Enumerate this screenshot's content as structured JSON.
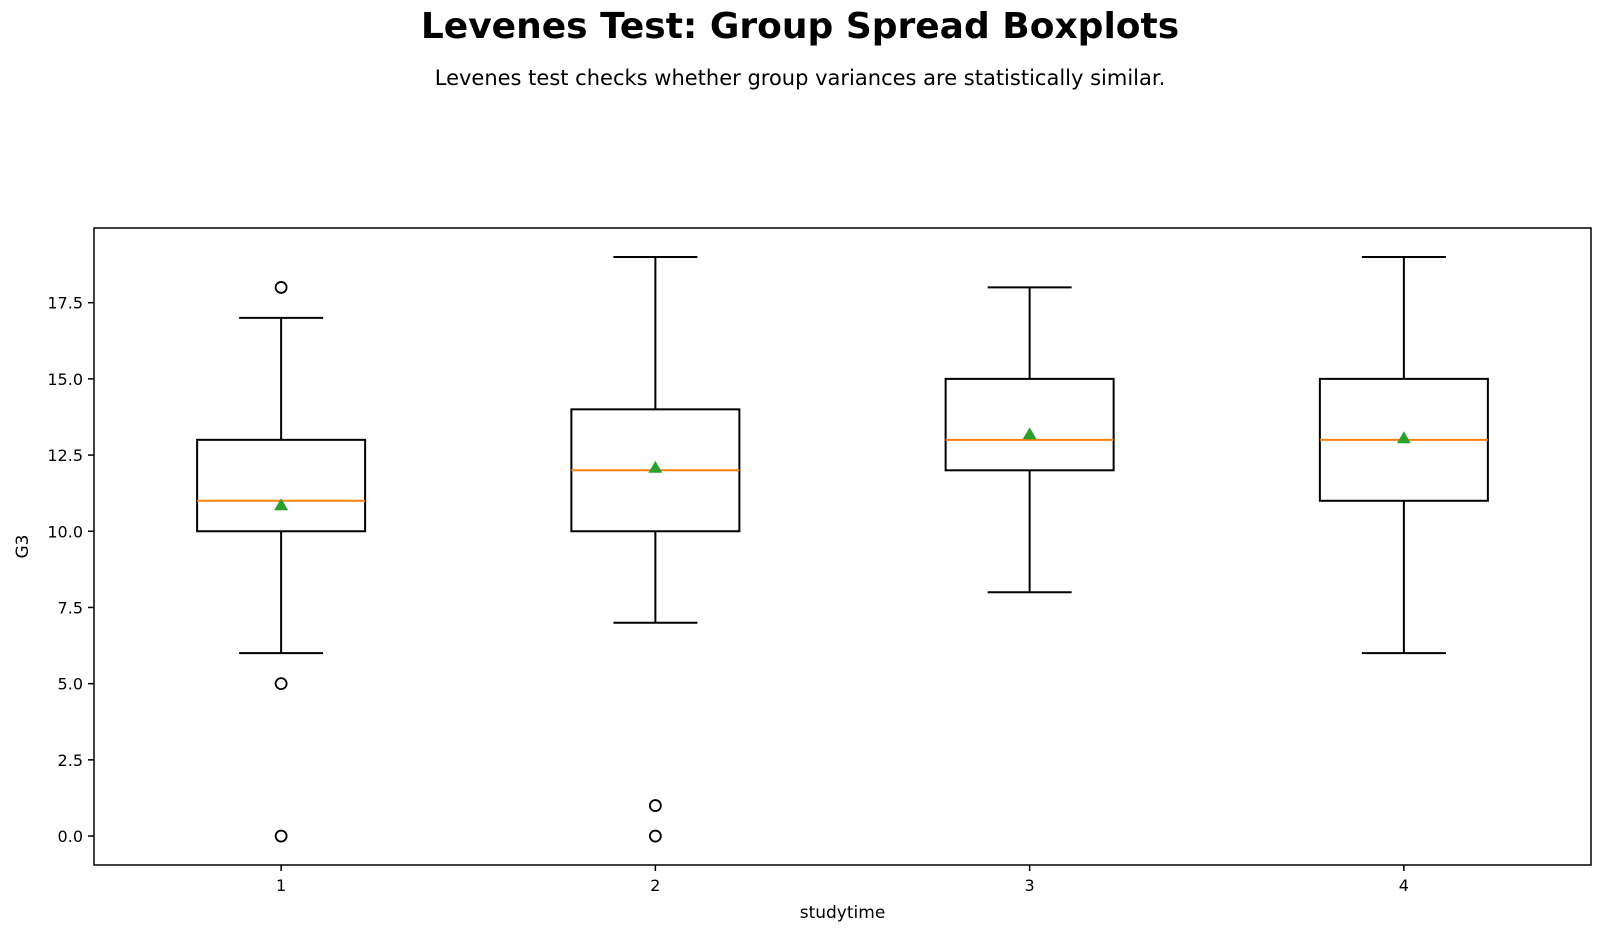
{
  "chart_data": {
    "type": "box",
    "title": "Levenes Test: Group Spread Boxplots",
    "subtitle": "Levenes test checks whether group variances are statistically similar.",
    "xlabel": "studytime",
    "ylabel": "G3",
    "categories": [
      "1",
      "2",
      "3",
      "4"
    ],
    "ylim": [
      -0.95,
      19.95
    ],
    "yticks": [
      0.0,
      2.5,
      5.0,
      7.5,
      10.0,
      12.5,
      15.0,
      17.5
    ],
    "ytick_labels": [
      "0.0",
      "2.5",
      "5.0",
      "7.5",
      "10.0",
      "12.5",
      "15.0",
      "17.5"
    ],
    "grid": false,
    "boxes": [
      {
        "category": "1",
        "whisker_low": 6,
        "q1": 10,
        "median": 11,
        "q3": 13,
        "whisker_high": 17,
        "mean": 10.85,
        "outliers": [
          18,
          5,
          0
        ]
      },
      {
        "category": "2",
        "whisker_low": 7,
        "q1": 10,
        "median": 12,
        "q3": 14,
        "whisker_high": 19,
        "mean": 12.08,
        "outliers": [
          1,
          0
        ]
      },
      {
        "category": "3",
        "whisker_low": 8,
        "q1": 12,
        "median": 13,
        "q3": 15,
        "whisker_high": 18,
        "mean": 13.18,
        "outliers": []
      },
      {
        "category": "4",
        "whisker_low": 6,
        "q1": 11,
        "median": 13,
        "q3": 15,
        "whisker_high": 19,
        "mean": 13.05,
        "outliers": []
      }
    ],
    "colors": {
      "box": "#000000",
      "median": "#ff7f0e",
      "mean": "#2ca02c",
      "flier": "#000000"
    }
  }
}
